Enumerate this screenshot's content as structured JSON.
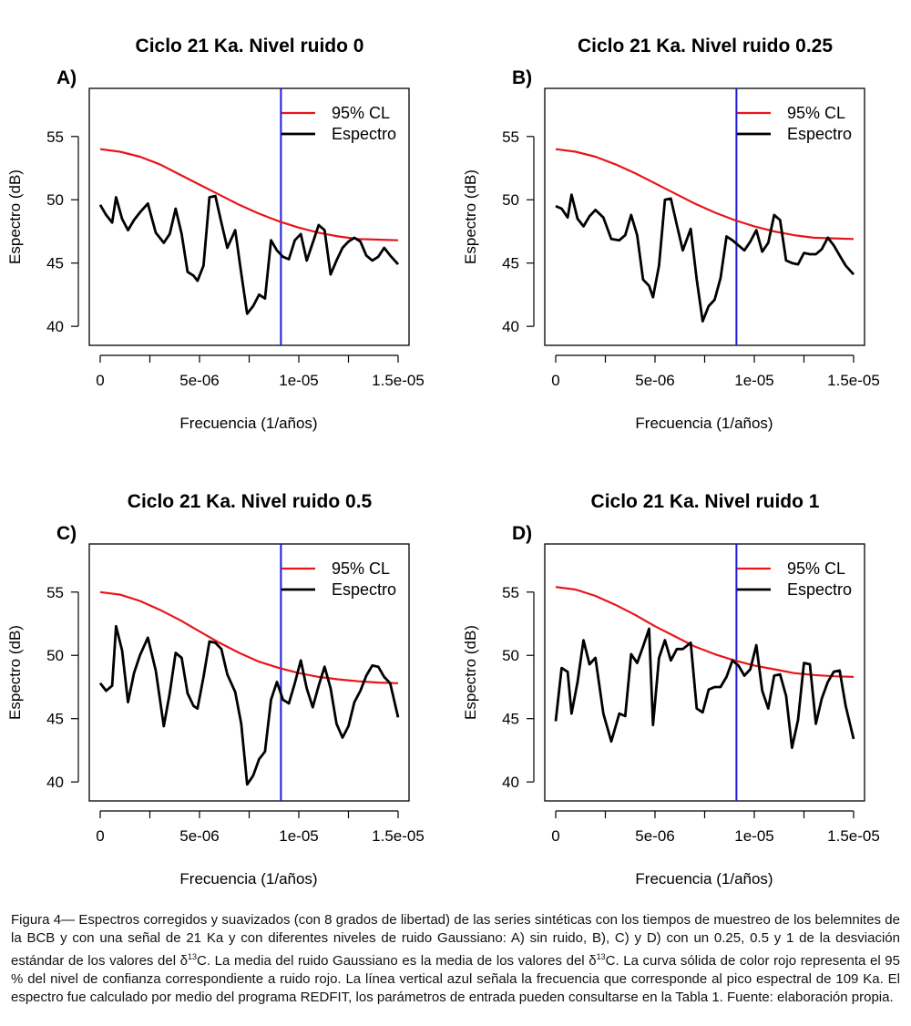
{
  "chart_data": [
    {
      "panel": "A)",
      "type": "line",
      "title": "Ciclo  21 Ka.  Nivel ruido  0",
      "xlabel": "Frecuencia (1/años)",
      "ylabel": "Espectro (dB)",
      "xlim": [
        0,
        1.5e-05
      ],
      "ylim": [
        38.5,
        58.8
      ],
      "x_ticks": [
        "0",
        "5e-06",
        "1e-05",
        "1.5e-05"
      ],
      "y_ticks": [
        "40",
        "45",
        "50",
        "55"
      ],
      "legend": [
        "95% CL",
        "Espectro"
      ],
      "legend_position": "top-right",
      "vline_x": 9.1e-06,
      "series": [
        {
          "name": "95% CL",
          "color": "#e8141b",
          "x": [
            0,
            1e-06,
            2e-06,
            3e-06,
            4e-06,
            5e-06,
            6e-06,
            7e-06,
            8e-06,
            9e-06,
            1e-05,
            1.1e-05,
            1.2e-05,
            1.3e-05,
            1.4e-05,
            1.5e-05
          ],
          "y": [
            54.0,
            53.8,
            53.4,
            52.8,
            52.0,
            51.2,
            50.4,
            49.6,
            48.9,
            48.3,
            47.8,
            47.4,
            47.1,
            46.9,
            46.85,
            46.8
          ]
        },
        {
          "name": "Espectro",
          "color": "#000000",
          "x": [
            0,
            3e-07,
            6e-07,
            8e-07,
            1.1e-06,
            1.4e-06,
            1.7e-06,
            2e-06,
            2.4e-06,
            2.8e-06,
            3.2e-06,
            3.5e-06,
            3.8e-06,
            4.1e-06,
            4.4e-06,
            4.7e-06,
            4.9e-06,
            5.2e-06,
            5.5e-06,
            5.8e-06,
            6.1e-06,
            6.4e-06,
            6.8e-06,
            7.1e-06,
            7.4e-06,
            7.7e-06,
            8e-06,
            8.3e-06,
            8.6e-06,
            8.9e-06,
            9.2e-06,
            9.5e-06,
            9.8e-06,
            1.01e-05,
            1.04e-05,
            1.07e-05,
            1.1e-05,
            1.13e-05,
            1.16e-05,
            1.19e-05,
            1.22e-05,
            1.25e-05,
            1.28e-05,
            1.31e-05,
            1.34e-05,
            1.37e-05,
            1.4e-05,
            1.43e-05,
            1.46e-05,
            1.5e-05
          ],
          "y": [
            49.6,
            48.8,
            48.2,
            50.2,
            48.5,
            47.6,
            48.4,
            49.0,
            49.7,
            47.4,
            46.6,
            47.3,
            49.3,
            47.3,
            44.3,
            44.0,
            43.6,
            44.8,
            50.2,
            50.3,
            48.2,
            46.2,
            47.6,
            44.2,
            41.0,
            41.6,
            42.5,
            42.2,
            46.8,
            46.0,
            45.5,
            45.3,
            46.8,
            47.3,
            45.2,
            46.6,
            48.0,
            47.6,
            44.1,
            45.2,
            46.2,
            46.7,
            47.0,
            46.7,
            45.6,
            45.2,
            45.5,
            46.2,
            45.6,
            44.9
          ]
        }
      ]
    },
    {
      "panel": "B)",
      "type": "line",
      "title": "Ciclo  21 Ka.  Nivel ruido  0.25",
      "xlabel": "Frecuencia (1/años)",
      "ylabel": "Espectro (dB)",
      "xlim": [
        0,
        1.5e-05
      ],
      "ylim": [
        38.5,
        58.8
      ],
      "x_ticks": [
        "0",
        "5e-06",
        "1e-05",
        "1.5e-05"
      ],
      "y_ticks": [
        "40",
        "45",
        "50",
        "55"
      ],
      "legend": [
        "95% CL",
        "Espectro"
      ],
      "legend_position": "top-right",
      "vline_x": 9.1e-06,
      "series": [
        {
          "name": "95% CL",
          "color": "#e8141b",
          "x": [
            0,
            1e-06,
            2e-06,
            3e-06,
            4e-06,
            5e-06,
            6e-06,
            7e-06,
            8e-06,
            9e-06,
            1e-05,
            1.1e-05,
            1.2e-05,
            1.3e-05,
            1.4e-05,
            1.5e-05
          ],
          "y": [
            54.0,
            53.8,
            53.4,
            52.8,
            52.1,
            51.3,
            50.5,
            49.7,
            49.0,
            48.4,
            47.9,
            47.5,
            47.2,
            47.0,
            46.95,
            46.9
          ]
        },
        {
          "name": "Espectro",
          "color": "#000000",
          "x": [
            0,
            3e-07,
            6e-07,
            8e-07,
            1.1e-06,
            1.4e-06,
            1.7e-06,
            2e-06,
            2.4e-06,
            2.8e-06,
            3.2e-06,
            3.5e-06,
            3.8e-06,
            4.1e-06,
            4.4e-06,
            4.7e-06,
            4.9e-06,
            5.2e-06,
            5.5e-06,
            5.8e-06,
            6.1e-06,
            6.4e-06,
            6.8e-06,
            7.1e-06,
            7.4e-06,
            7.7e-06,
            8e-06,
            8.3e-06,
            8.6e-06,
            8.9e-06,
            9.2e-06,
            9.5e-06,
            9.8e-06,
            1.01e-05,
            1.04e-05,
            1.07e-05,
            1.1e-05,
            1.13e-05,
            1.16e-05,
            1.19e-05,
            1.22e-05,
            1.25e-05,
            1.28e-05,
            1.31e-05,
            1.34e-05,
            1.37e-05,
            1.4e-05,
            1.43e-05,
            1.46e-05,
            1.5e-05
          ],
          "y": [
            49.5,
            49.3,
            48.6,
            50.4,
            48.5,
            47.9,
            48.7,
            49.2,
            48.6,
            46.9,
            46.8,
            47.2,
            48.8,
            47.2,
            43.7,
            43.2,
            42.3,
            44.8,
            50.0,
            50.1,
            48.0,
            46.0,
            47.7,
            43.7,
            40.4,
            41.6,
            42.1,
            43.8,
            47.1,
            46.8,
            46.4,
            46.0,
            46.7,
            47.6,
            45.9,
            46.6,
            48.8,
            48.4,
            45.2,
            45.0,
            44.9,
            45.8,
            45.7,
            45.7,
            46.1,
            47.0,
            46.4,
            45.6,
            44.8,
            44.1
          ]
        }
      ]
    },
    {
      "panel": "C)",
      "type": "line",
      "title": "Ciclo  21 Ka.  Nivel ruido  0.5",
      "xlabel": "Frecuencia (1/años)",
      "ylabel": "Espectro (dB)",
      "xlim": [
        0,
        1.5e-05
      ],
      "ylim": [
        38.5,
        58.8
      ],
      "x_ticks": [
        "0",
        "5e-06",
        "1e-05",
        "1.5e-05"
      ],
      "y_ticks": [
        "40",
        "45",
        "50",
        "55"
      ],
      "legend": [
        "95% CL",
        "Espectro"
      ],
      "legend_position": "top-right",
      "vline_x": 9.1e-06,
      "series": [
        {
          "name": "95% CL",
          "color": "#e8141b",
          "x": [
            0,
            1e-06,
            2e-06,
            3e-06,
            4e-06,
            5e-06,
            6e-06,
            7e-06,
            8e-06,
            9e-06,
            1e-05,
            1.1e-05,
            1.2e-05,
            1.3e-05,
            1.4e-05,
            1.5e-05
          ],
          "y": [
            55.0,
            54.8,
            54.3,
            53.6,
            52.8,
            51.9,
            51.0,
            50.2,
            49.5,
            49.0,
            48.6,
            48.3,
            48.1,
            47.95,
            47.85,
            47.8
          ]
        },
        {
          "name": "Espectro",
          "color": "#000000",
          "x": [
            0,
            3e-07,
            6e-07,
            8e-07,
            1.1e-06,
            1.4e-06,
            1.7e-06,
            2e-06,
            2.4e-06,
            2.8e-06,
            3.2e-06,
            3.5e-06,
            3.8e-06,
            4.1e-06,
            4.4e-06,
            4.7e-06,
            4.9e-06,
            5.2e-06,
            5.5e-06,
            5.8e-06,
            6.1e-06,
            6.4e-06,
            6.8e-06,
            7.1e-06,
            7.4e-06,
            7.7e-06,
            8e-06,
            8.3e-06,
            8.6e-06,
            8.9e-06,
            9.2e-06,
            9.5e-06,
            9.8e-06,
            1.01e-05,
            1.04e-05,
            1.07e-05,
            1.1e-05,
            1.13e-05,
            1.16e-05,
            1.19e-05,
            1.22e-05,
            1.25e-05,
            1.28e-05,
            1.31e-05,
            1.34e-05,
            1.37e-05,
            1.4e-05,
            1.43e-05,
            1.46e-05,
            1.5e-05
          ],
          "y": [
            47.8,
            47.2,
            47.6,
            52.3,
            50.4,
            46.3,
            48.6,
            50.0,
            51.4,
            48.8,
            44.4,
            47.0,
            50.2,
            49.8,
            47.0,
            46.0,
            45.8,
            48.3,
            51.1,
            51.0,
            50.5,
            48.5,
            47.1,
            44.6,
            39.8,
            40.5,
            41.8,
            42.4,
            46.5,
            47.9,
            46.5,
            46.2,
            47.8,
            49.6,
            47.4,
            45.9,
            47.6,
            49.1,
            47.4,
            44.6,
            43.5,
            44.4,
            46.3,
            47.2,
            48.4,
            49.2,
            49.1,
            48.3,
            47.8,
            45.1
          ]
        }
      ]
    },
    {
      "panel": "D)",
      "type": "line",
      "title": "Ciclo  21 Ka.  Nivel ruido  1",
      "xlabel": "Frecuencia (1/años)",
      "ylabel": "Espectro (dB)",
      "xlim": [
        0,
        1.5e-05
      ],
      "ylim": [
        38.5,
        58.8
      ],
      "x_ticks": [
        "0",
        "5e-06",
        "1e-05",
        "1.5e-05"
      ],
      "y_ticks": [
        "40",
        "45",
        "50",
        "55"
      ],
      "legend": [
        "95% CL",
        "Espectro"
      ],
      "legend_position": "top-right",
      "vline_x": 9.1e-06,
      "series": [
        {
          "name": "95% CL",
          "color": "#e8141b",
          "x": [
            0,
            1e-06,
            2e-06,
            3e-06,
            4e-06,
            5e-06,
            6e-06,
            7e-06,
            8e-06,
            9e-06,
            1e-05,
            1.1e-05,
            1.2e-05,
            1.3e-05,
            1.4e-05,
            1.5e-05
          ],
          "y": [
            55.4,
            55.2,
            54.7,
            54.0,
            53.2,
            52.3,
            51.5,
            50.7,
            50.1,
            49.6,
            49.2,
            48.9,
            48.6,
            48.45,
            48.35,
            48.3
          ]
        },
        {
          "name": "Espectro",
          "color": "#000000",
          "x": [
            0,
            3e-07,
            6e-07,
            8e-07,
            1.1e-06,
            1.4e-06,
            1.7e-06,
            2e-06,
            2.4e-06,
            2.8e-06,
            3.2e-06,
            3.5e-06,
            3.8e-06,
            4.1e-06,
            4.4e-06,
            4.7e-06,
            4.9e-06,
            5.2e-06,
            5.5e-06,
            5.8e-06,
            6.1e-06,
            6.4e-06,
            6.8e-06,
            7.1e-06,
            7.4e-06,
            7.7e-06,
            8e-06,
            8.3e-06,
            8.6e-06,
            8.9e-06,
            9.2e-06,
            9.5e-06,
            9.8e-06,
            1.01e-05,
            1.04e-05,
            1.07e-05,
            1.1e-05,
            1.13e-05,
            1.16e-05,
            1.19e-05,
            1.22e-05,
            1.25e-05,
            1.28e-05,
            1.31e-05,
            1.34e-05,
            1.37e-05,
            1.4e-05,
            1.43e-05,
            1.46e-05,
            1.5e-05
          ],
          "y": [
            44.8,
            49.0,
            48.7,
            45.4,
            47.9,
            51.2,
            49.3,
            49.8,
            45.4,
            43.2,
            45.4,
            45.2,
            50.1,
            49.4,
            50.7,
            52.1,
            44.5,
            49.8,
            51.2,
            49.6,
            50.5,
            50.5,
            51.0,
            45.8,
            45.5,
            47.3,
            47.5,
            47.5,
            48.3,
            49.6,
            49.2,
            48.4,
            48.9,
            50.8,
            47.2,
            45.8,
            48.4,
            48.5,
            46.8,
            42.7,
            44.9,
            49.4,
            49.3,
            44.6,
            46.6,
            47.9,
            48.7,
            48.8,
            46.0,
            43.4
          ]
        }
      ]
    }
  ],
  "caption": {
    "text_1": "Figura 4— Espectros corregidos y suavizados (con 8 grados de libertad) de las series sintéticas con los tiempos de muestreo de los belemnites de la BCB y con una señal de 21 Ka y con diferentes niveles de ruido Gaussiano: A) sin ruido, B), C) y D) con un 0.25, 0.5 y 1 de la desviación estándar de los valores del δ",
    "sup_1": "13",
    "text_2": "C. La media del ruido Gaussiano es la media de los valores del δ",
    "sup_2": "13",
    "text_3": "C. La curva sólida de color rojo representa el 95 % del nivel de confianza correspondiente a ruido rojo. La línea vertical azul señala la frecuencia que corresponde al pico espectral de 109 Ka. El espectro fue calculado por medio del programa REDFIT, los parámetros de entrada pueden consultarse en la Tabla 1. Fuente: elaboración propia."
  }
}
